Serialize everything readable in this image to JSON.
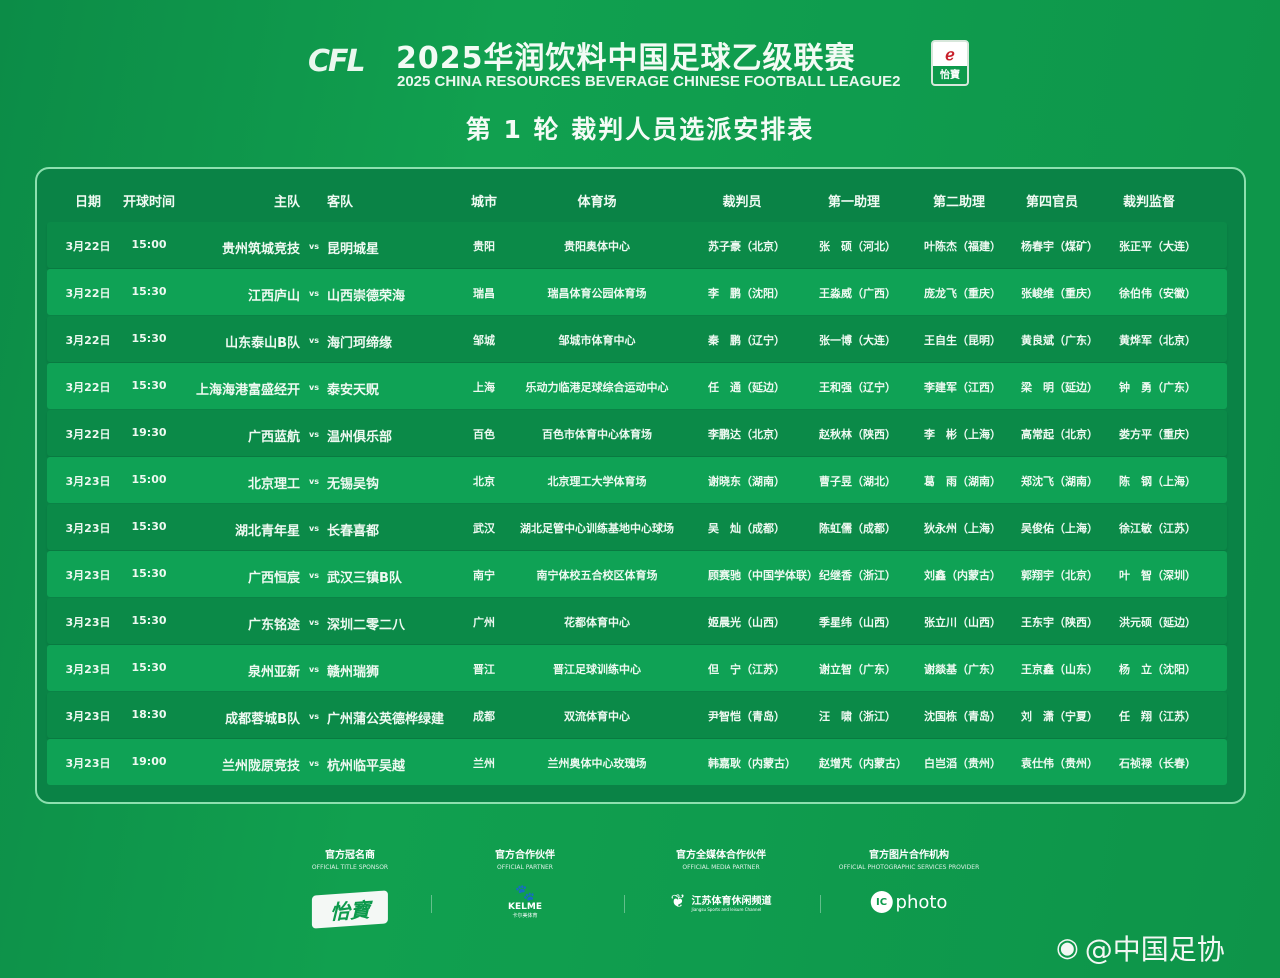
{
  "header": {
    "logo_text": "CFL",
    "title_cn": "2025华润饮料中国足球乙级联赛",
    "title_en": "2025 CHINA RESOURCES BEVERAGE CHINESE FOOTBALL LEAGUE2",
    "sponsor_badge": "怡寶",
    "subtitle": "第 1 轮  裁判人员选派安排表"
  },
  "table": {
    "columns": {
      "date": "日期",
      "time": "开球时间",
      "home": "主队",
      "away": "客队",
      "city": "城市",
      "venue": "体育场",
      "referee": "裁判员",
      "ar1": "第一助理",
      "ar2": "第二助理",
      "fourth": "第四官员",
      "supervisor": "裁判监督"
    },
    "vs": "vs",
    "rows": [
      {
        "date": "3月22日",
        "time": "15:00",
        "home": "贵州筑城竞技",
        "away": "昆明城星",
        "city": "贵阳",
        "venue": "贵阳奥体中心",
        "referee": "苏子豪（北京）",
        "ar1": "张　硕（河北）",
        "ar2": "叶陈杰（福建）",
        "fourth": "杨春宇（煤矿）",
        "supervisor": "张正平（大连）"
      },
      {
        "date": "3月22日",
        "time": "15:30",
        "home": "江西庐山",
        "away": "山西崇德荣海",
        "city": "瑞昌",
        "venue": "瑞昌体育公园体育场",
        "referee": "李　鹏（沈阳）",
        "ar1": "王淼威（广西）",
        "ar2": "庞龙飞（重庆）",
        "fourth": "张峻维（重庆）",
        "supervisor": "徐伯伟（安徽）"
      },
      {
        "date": "3月22日",
        "time": "15:30",
        "home": "山东泰山B队",
        "away": "海门珂缔缘",
        "city": "邹城",
        "venue": "邹城市体育中心",
        "referee": "秦　鹏（辽宁）",
        "ar1": "张一博（大连）",
        "ar2": "王自生（昆明）",
        "fourth": "黄良斌（广东）",
        "supervisor": "黄烨军（北京）"
      },
      {
        "date": "3月22日",
        "time": "15:30",
        "home": "上海海港富盛经开",
        "away": "泰安天贶",
        "city": "上海",
        "venue": "乐动力临港足球综合运动中心",
        "referee": "任　通（延边）",
        "ar1": "王和强（辽宁）",
        "ar2": "李建军（江西）",
        "fourth": "梁　明（延边）",
        "supervisor": "钟　勇（广东）"
      },
      {
        "date": "3月22日",
        "time": "19:30",
        "home": "广西蓝航",
        "away": "温州俱乐部",
        "city": "百色",
        "venue": "百色市体育中心体育场",
        "referee": "李鹏达（北京）",
        "ar1": "赵秋林（陕西）",
        "ar2": "李　彬（上海）",
        "fourth": "高常起（北京）",
        "supervisor": "娄方平（重庆）"
      },
      {
        "date": "3月23日",
        "time": "15:00",
        "home": "北京理工",
        "away": "无锡吴钩",
        "city": "北京",
        "venue": "北京理工大学体育场",
        "referee": "谢晓东（湖南）",
        "ar1": "曹子昱（湖北）",
        "ar2": "葛　雨（湖南）",
        "fourth": "郑沈飞（湖南）",
        "supervisor": "陈　钢（上海）"
      },
      {
        "date": "3月23日",
        "time": "15:30",
        "home": "湖北青年星",
        "away": "长春喜都",
        "city": "武汉",
        "venue": "湖北足管中心训练基地中心球场",
        "referee": "吴　灿（成都）",
        "ar1": "陈虹儒（成都）",
        "ar2": "狄永州（上海）",
        "fourth": "吴俊佑（上海）",
        "supervisor": "徐江敏（江苏）"
      },
      {
        "date": "3月23日",
        "time": "15:30",
        "home": "广西恒宸",
        "away": "武汉三镇B队",
        "city": "南宁",
        "venue": "南宁体校五合校区体育场",
        "referee": "顾赛驰（中国学体联）",
        "ar1": "纪继香（浙江）",
        "ar2": "刘鑫（内蒙古）",
        "fourth": "郭翔宇（北京）",
        "supervisor": "叶　智（深圳）"
      },
      {
        "date": "3月23日",
        "time": "15:30",
        "home": "广东铭途",
        "away": "深圳二零二八",
        "city": "广州",
        "venue": "花都体育中心",
        "referee": "姬晨光（山西）",
        "ar1": "季星纬（山西）",
        "ar2": "张立川（山西）",
        "fourth": "王东宇（陕西）",
        "supervisor": "洪元硕（延边）"
      },
      {
        "date": "3月23日",
        "time": "15:30",
        "home": "泉州亚新",
        "away": "赣州瑞狮",
        "city": "晋江",
        "venue": "晋江足球训练中心",
        "referee": "但　宁（江苏）",
        "ar1": "谢立智（广东）",
        "ar2": "谢燚基（广东）",
        "fourth": "王京鑫（山东）",
        "supervisor": "杨　立（沈阳）"
      },
      {
        "date": "3月23日",
        "time": "18:30",
        "home": "成都蓉城B队",
        "away": "广州蒲公英德桦绿建",
        "city": "成都",
        "venue": "双流体育中心",
        "referee": "尹智恺（青岛）",
        "ar1": "汪　啸（浙江）",
        "ar2": "沈国栋（青岛）",
        "fourth": "刘　潇（宁夏）",
        "supervisor": "任　翔（江苏）"
      },
      {
        "date": "3月23日",
        "time": "19:00",
        "home": "兰州陇原竞技",
        "away": "杭州临平吴越",
        "city": "兰州",
        "venue": "兰州奥体中心玫瑰场",
        "referee": "韩嘉耿（内蒙古）",
        "ar1": "赵增芃（内蒙古）",
        "ar2": "白岂滔（贵州）",
        "fourth": "袁仕伟（贵州）",
        "supervisor": "石祯禄（长春）"
      }
    ]
  },
  "footer": {
    "sponsors": [
      {
        "title_cn": "官方冠名商",
        "title_en": "OFFICIAL TITLE SPONSOR",
        "logo": "怡寶"
      },
      {
        "title_cn": "官方合作伙伴",
        "title_en": "OFFICIAL PARTNER",
        "logo": "KELME",
        "logo_sub": "卡尔美体育"
      },
      {
        "title_cn": "官方全媒体合作伙伴",
        "title_en": "OFFICIAL MEDIA PARTNER",
        "logo": "江苏体育休闲频道",
        "logo_sub": "Jiangsu Sports and leisure Channel"
      },
      {
        "title_cn": "官方图片合作机构",
        "title_en": "OFFICIAL PHOTOGRAPHIC SERVICES PROVIDER",
        "logo": "photo"
      }
    ],
    "watermark": "@中国足协"
  },
  "colors": {
    "background": "#0f9a4e",
    "row_dark": "#0b8a48",
    "row_light": "#0fa255",
    "border": "#8de0af"
  }
}
